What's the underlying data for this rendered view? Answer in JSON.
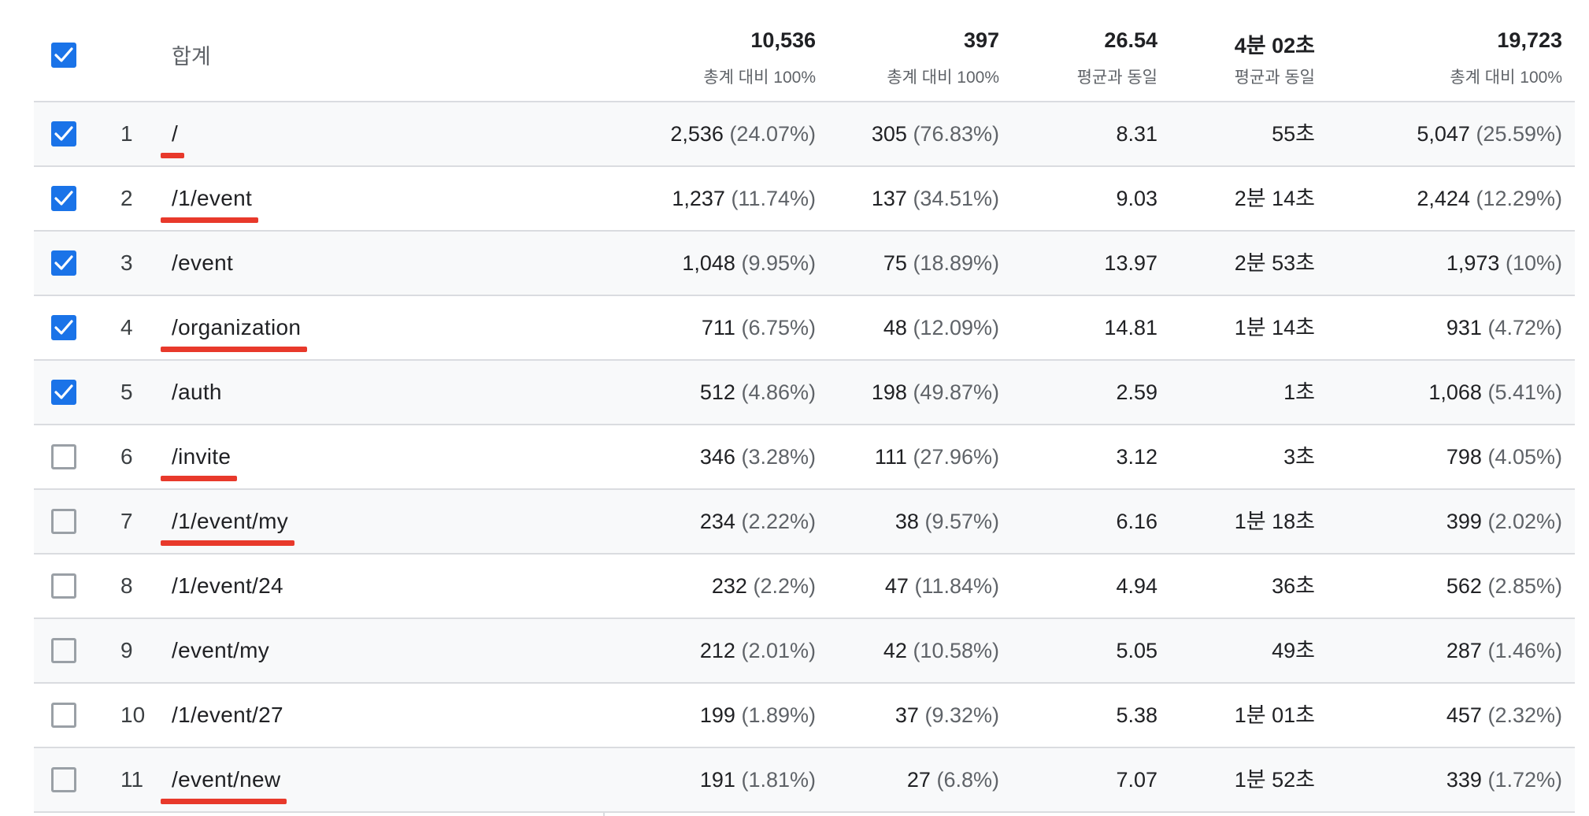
{
  "header": {
    "label": "합계",
    "checked": true,
    "totals": [
      {
        "value": "10,536",
        "note": "총계 대비 100%"
      },
      {
        "value": "397",
        "note": "총계 대비 100%"
      },
      {
        "value": "26.54",
        "note": "평균과 동일"
      },
      {
        "value": "4분 02초",
        "note": "평균과 동일"
      },
      {
        "value": "19,723",
        "note": "총계 대비 100%"
      }
    ]
  },
  "rows": [
    {
      "index": "1",
      "path": "/",
      "checked": true,
      "underlined": true,
      "c1": "2,536",
      "c1p": "(24.07%)",
      "c2": "305",
      "c2p": "(76.83%)",
      "c3": "8.31",
      "c4": "55초",
      "c5": "5,047",
      "c5p": "(25.59%)"
    },
    {
      "index": "2",
      "path": "/1/event",
      "checked": true,
      "underlined": true,
      "c1": "1,237",
      "c1p": "(11.74%)",
      "c2": "137",
      "c2p": "(34.51%)",
      "c3": "9.03",
      "c4": "2분 14초",
      "c5": "2,424",
      "c5p": "(12.29%)"
    },
    {
      "index": "3",
      "path": "/event",
      "checked": true,
      "underlined": false,
      "c1": "1,048",
      "c1p": "(9.95%)",
      "c2": "75",
      "c2p": "(18.89%)",
      "c3": "13.97",
      "c4": "2분 53초",
      "c5": "1,973",
      "c5p": "(10%)"
    },
    {
      "index": "4",
      "path": "/organization",
      "checked": true,
      "underlined": true,
      "c1": "711",
      "c1p": "(6.75%)",
      "c2": "48",
      "c2p": "(12.09%)",
      "c3": "14.81",
      "c4": "1분 14초",
      "c5": "931",
      "c5p": "(4.72%)"
    },
    {
      "index": "5",
      "path": "/auth",
      "checked": true,
      "underlined": false,
      "c1": "512",
      "c1p": "(4.86%)",
      "c2": "198",
      "c2p": "(49.87%)",
      "c3": "2.59",
      "c4": "1초",
      "c5": "1,068",
      "c5p": "(5.41%)"
    },
    {
      "index": "6",
      "path": "/invite",
      "checked": false,
      "underlined": true,
      "c1": "346",
      "c1p": "(3.28%)",
      "c2": "111",
      "c2p": "(27.96%)",
      "c3": "3.12",
      "c4": "3초",
      "c5": "798",
      "c5p": "(4.05%)"
    },
    {
      "index": "7",
      "path": "/1/event/my",
      "checked": false,
      "underlined": true,
      "c1": "234",
      "c1p": "(2.22%)",
      "c2": "38",
      "c2p": "(9.57%)",
      "c3": "6.16",
      "c4": "1분 18초",
      "c5": "399",
      "c5p": "(2.02%)"
    },
    {
      "index": "8",
      "path": "/1/event/24",
      "checked": false,
      "underlined": false,
      "c1": "232",
      "c1p": "(2.2%)",
      "c2": "47",
      "c2p": "(11.84%)",
      "c3": "4.94",
      "c4": "36초",
      "c5": "562",
      "c5p": "(2.85%)"
    },
    {
      "index": "9",
      "path": "/event/my",
      "checked": false,
      "underlined": false,
      "c1": "212",
      "c1p": "(2.01%)",
      "c2": "42",
      "c2p": "(10.58%)",
      "c3": "5.05",
      "c4": "49초",
      "c5": "287",
      "c5p": "(1.46%)"
    },
    {
      "index": "10",
      "path": "/1/event/27",
      "checked": false,
      "underlined": false,
      "c1": "199",
      "c1p": "(1.89%)",
      "c2": "37",
      "c2p": "(9.32%)",
      "c3": "5.38",
      "c4": "1분 01초",
      "c5": "457",
      "c5p": "(2.32%)"
    },
    {
      "index": "11",
      "path": "/event/new",
      "checked": false,
      "underlined": true,
      "c1": "191",
      "c1p": "(1.81%)",
      "c2": "27",
      "c2p": "(6.8%)",
      "c3": "7.07",
      "c4": "1분 52초",
      "c5": "339",
      "c5p": "(1.72%)"
    }
  ],
  "colors": {
    "checkbox_on": "#1a73e8",
    "checkbox_off_border": "#9aa0a6",
    "annotation_underline": "#e8392b",
    "row_stripe": "#f8f9fa",
    "divider": "#dadce0"
  }
}
